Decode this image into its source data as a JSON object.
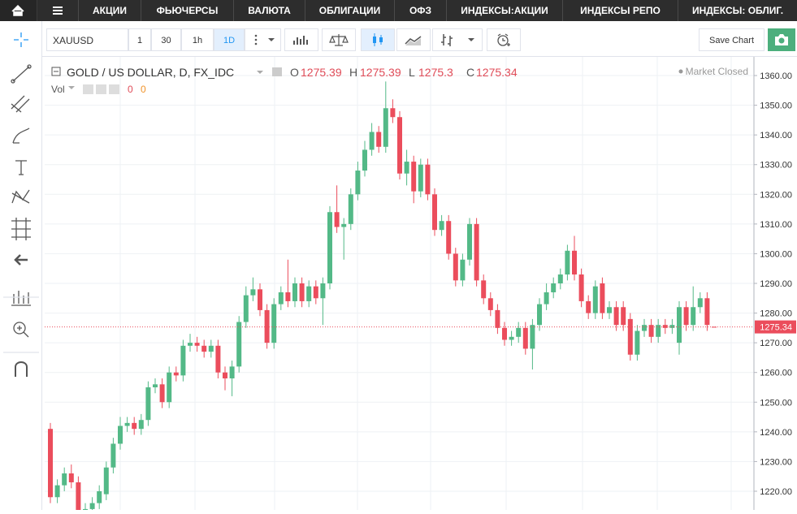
{
  "nav": {
    "items": [
      "АКЦИИ",
      "ФЬЮЧЕРСЫ",
      "ВАЛЮТА",
      "ОБЛИГАЦИИ",
      "ОФЗ",
      "ИНДЕКСЫ:АКЦИИ",
      "ИНДЕКСЫ РЕПО",
      "ИНДЕКСЫ: ОБЛИГ."
    ]
  },
  "toolbar": {
    "symbol": "XAUUSD",
    "intervals": [
      "1",
      "30",
      "1h",
      "1D"
    ],
    "save": "Save Chart"
  },
  "chart_data": {
    "type": "candlestick",
    "title": "GOLD / US DOLLAR, D, FX_IDC",
    "status": "Market Closed",
    "ohlc_labels": [
      "O",
      "H",
      "L",
      "C"
    ],
    "volume_label": "Vol",
    "volume_values": [
      0,
      0
    ],
    "up_color": "#53b987",
    "down_color": "#eb4d5c",
    "open": [
      1241,
      1218,
      1222,
      1226,
      1223,
      1212,
      1214,
      1216,
      1219,
      1228,
      1236,
      1242,
      1243,
      1241,
      1244,
      1255,
      1256,
      1250,
      1260,
      1259,
      1269,
      1270,
      1269,
      1267,
      1269,
      1260,
      1258,
      1262,
      1277,
      1286,
      1288,
      1281,
      1270,
      1283,
      1287,
      1284,
      1290,
      1284,
      1289,
      1285,
      1290,
      1314,
      1309,
      1310,
      1320,
      1328,
      1335,
      1341,
      1336,
      1349,
      1346,
      1327,
      1331,
      1321,
      1330,
      1320,
      1308,
      1311,
      1300,
      1291,
      1298,
      1310,
      1291,
      1285,
      1281,
      1275,
      1271,
      1272,
      1275,
      1268,
      1276,
      1283,
      1287,
      1290,
      1293,
      1301,
      1293,
      1284,
      1280,
      1290,
      1280,
      1282,
      1282,
      1278,
      1266,
      1274,
      1276,
      1272,
      1276,
      1275,
      1270,
      1282,
      1276,
      1282,
      1285,
      1275.39
    ],
    "high": [
      1243,
      1224,
      1228,
      1229,
      1225,
      1216,
      1218,
      1222,
      1230,
      1238,
      1245,
      1245,
      1245,
      1246,
      1257,
      1258,
      1258,
      1262,
      1262,
      1271,
      1273,
      1272,
      1271,
      1271,
      1271,
      1262,
      1264,
      1279,
      1289,
      1292,
      1290,
      1283,
      1285,
      1289,
      1298,
      1292,
      1292,
      1291,
      1291,
      1292,
      1316,
      1323,
      1312,
      1322,
      1331,
      1338,
      1344,
      1343,
      1358,
      1352,
      1348,
      1335,
      1333,
      1332,
      1332,
      1322,
      1313,
      1313,
      1302,
      1300,
      1312,
      1312,
      1293,
      1287,
      1283,
      1277,
      1274,
      1277,
      1277,
      1278,
      1285,
      1290,
      1292,
      1295,
      1303,
      1306,
      1295,
      1286,
      1291,
      1292,
      1284,
      1284,
      1284,
      1280,
      1276,
      1278,
      1278,
      1278,
      1278,
      1278,
      1284,
      1284,
      1289,
      1287,
      1287,
      1275.39
    ],
    "low": [
      1216,
      1216,
      1220,
      1221,
      1208,
      1210,
      1212,
      1214,
      1217,
      1226,
      1234,
      1240,
      1239,
      1239,
      1242,
      1253,
      1248,
      1248,
      1257,
      1257,
      1267,
      1267,
      1265,
      1265,
      1258,
      1254,
      1252,
      1260,
      1275,
      1284,
      1279,
      1268,
      1268,
      1281,
      1282,
      1282,
      1282,
      1282,
      1283,
      1276,
      1288,
      1307,
      1298,
      1308,
      1318,
      1326,
      1333,
      1334,
      1334,
      1344,
      1325,
      1323,
      1317,
      1319,
      1318,
      1306,
      1306,
      1298,
      1289,
      1289,
      1296,
      1289,
      1283,
      1279,
      1273,
      1269,
      1269,
      1270,
      1266,
      1261,
      1274,
      1281,
      1285,
      1288,
      1291,
      1291,
      1282,
      1278,
      1278,
      1278,
      1278,
      1274,
      1274,
      1264,
      1264,
      1272,
      1270,
      1270,
      1273,
      1273,
      1266,
      1274,
      1274,
      1280,
      1274,
      1275.3
    ],
    "close": [
      1218,
      1222,
      1226,
      1223,
      1212,
      1214,
      1216,
      1220,
      1228,
      1236,
      1242,
      1243,
      1241,
      1244,
      1255,
      1256,
      1250,
      1260,
      1259,
      1269,
      1270,
      1269,
      1267,
      1269,
      1260,
      1258,
      1262,
      1277,
      1286,
      1288,
      1281,
      1270,
      1283,
      1287,
      1284,
      1290,
      1284,
      1289,
      1285,
      1290,
      1314,
      1309,
      1310,
      1320,
      1328,
      1335,
      1341,
      1336,
      1349,
      1346,
      1327,
      1331,
      1321,
      1330,
      1320,
      1308,
      1311,
      1300,
      1291,
      1298,
      1310,
      1291,
      1285,
      1281,
      1275,
      1271,
      1272,
      1275,
      1268,
      1276,
      1283,
      1287,
      1290,
      1293,
      1301,
      1293,
      1284,
      1280,
      1289,
      1280,
      1282,
      1276,
      1276,
      1266,
      1274,
      1276,
      1272,
      1276,
      1275,
      1276,
      1282,
      1276,
      1282,
      1285,
      1276,
      1275.34
    ],
    "ylim": [
      1213.7,
      1366.3
    ],
    "yticks": [
      {
        "value": 1220,
        "label": "1220.00"
      },
      {
        "value": 1230,
        "label": "1230.00"
      },
      {
        "value": 1240,
        "label": "1240.00"
      },
      {
        "value": 1250,
        "label": "1250.00"
      },
      {
        "value": 1260,
        "label": "1260.00"
      },
      {
        "value": 1270,
        "label": "1270.00"
      },
      {
        "value": 1280,
        "label": "1280.00"
      },
      {
        "value": 1290,
        "label": "1290.00"
      },
      {
        "value": 1300,
        "label": "1300.00"
      },
      {
        "value": 1310,
        "label": "1310.00"
      },
      {
        "value": 1320,
        "label": "1320.00"
      },
      {
        "value": 1330,
        "label": "1330.00"
      },
      {
        "value": 1340,
        "label": "1340.00"
      },
      {
        "value": 1350,
        "label": "1350.00"
      },
      {
        "value": 1360,
        "label": "1360.00"
      }
    ],
    "grid": true
  }
}
